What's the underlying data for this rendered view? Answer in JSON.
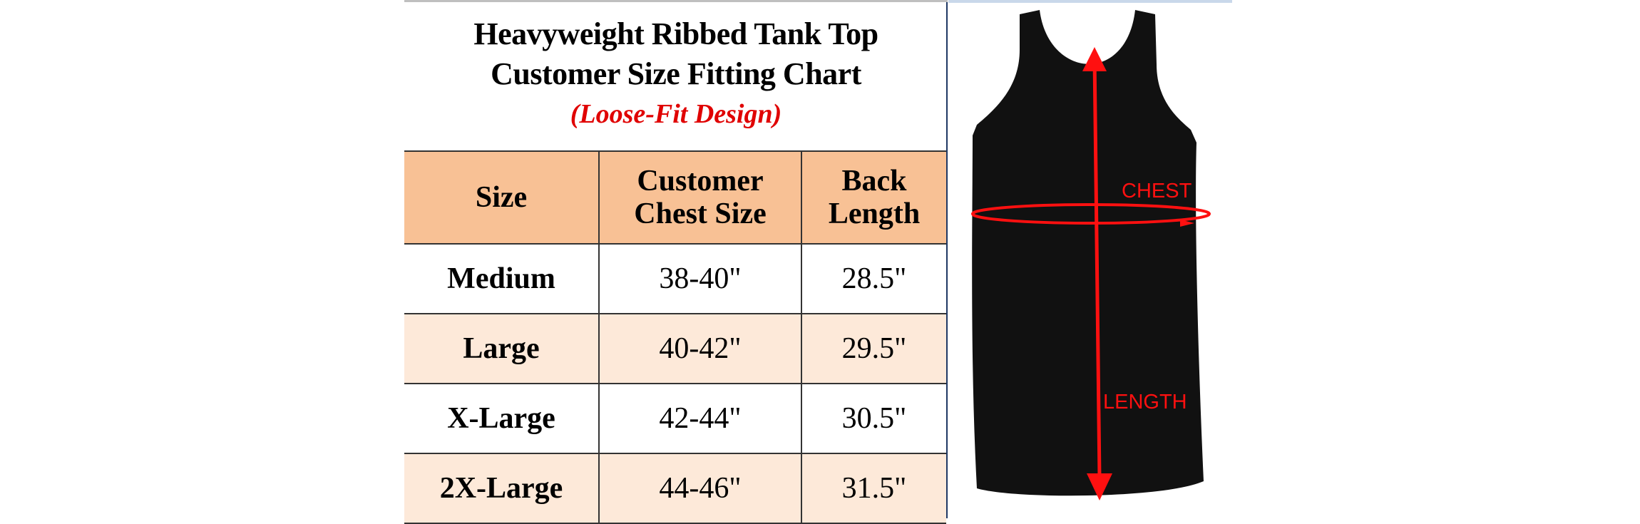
{
  "header": {
    "title_line1": "Heavyweight Ribbed Tank Top",
    "title_line2": "Customer Size Fitting Chart",
    "subtitle": "(Loose-Fit Design)"
  },
  "table": {
    "columns": [
      "Size",
      "Customer Chest Size",
      "Back Length"
    ],
    "column_lines": [
      [
        "Size"
      ],
      [
        "Customer",
        "Chest Size"
      ],
      [
        "Back",
        "Length"
      ]
    ],
    "rows": [
      {
        "size": "Medium",
        "chest": "38-40\"",
        "length": "28.5\""
      },
      {
        "size": "Large",
        "chest": "40-42\"",
        "length": "29.5\""
      },
      {
        "size": "X-Large",
        "chest": "42-44\"",
        "length": "30.5\""
      },
      {
        "size": "2X-Large",
        "chest": "44-46\"",
        "length": "31.5\""
      }
    ]
  },
  "diagram": {
    "chest_label": "CHEST",
    "length_label": "LENGTH"
  },
  "colors": {
    "header_bg": "#f8c195",
    "alt_row_bg": "#fde9d9",
    "subtitle": "#e00000",
    "annotation": "#ff1010",
    "garment": "#111111"
  }
}
